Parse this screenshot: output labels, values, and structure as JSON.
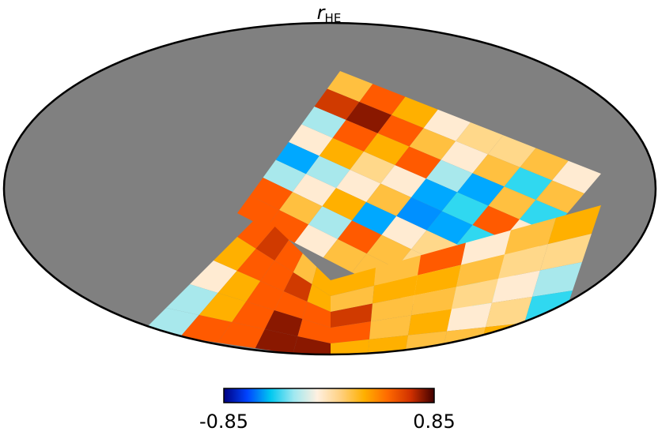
{
  "chart_data": {
    "type": "heatmap",
    "projection": "mollweide",
    "title": {
      "symbol": "r",
      "subscript": "HE"
    },
    "colorbar": {
      "min_label": "-0.85",
      "max_label": "0.85",
      "vmin": -0.85,
      "vmax": 0.85,
      "colors": [
        "#000080",
        "#0044ff",
        "#00c8f0",
        "#a0e8f0",
        "#fff0e0",
        "#ffd080",
        "#ffb000",
        "#ff6a00",
        "#d03000",
        "#400000"
      ]
    },
    "background_color": "#808080",
    "grid": false
  }
}
